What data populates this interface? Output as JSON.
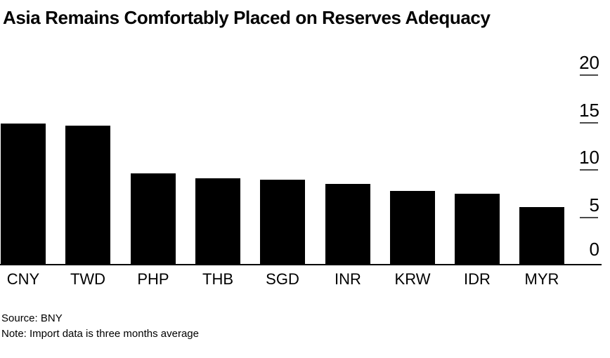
{
  "title": "Asia Remains Comfortably Placed on Reserves Adequacy",
  "footer": {
    "source": "Source: BNY",
    "note": "Note: Import data is three months average"
  },
  "colors": {
    "background": "#ffffff",
    "bar": "#000000",
    "baseline": "#000000",
    "tick": "#4a4a4a",
    "text": "#000000"
  },
  "chart_data": {
    "type": "bar",
    "title": "Asia Remains Comfortably Placed on Reserves Adequacy",
    "categories": [
      "CNY",
      "TWD",
      "PHP",
      "THB",
      "SGD",
      "INR",
      "KRW",
      "IDR",
      "MYR"
    ],
    "values": [
      14.9,
      14.7,
      9.6,
      9.1,
      9.0,
      8.5,
      7.8,
      7.5,
      6.1
    ],
    "xlabel": "",
    "ylabel": "",
    "ylim": [
      0,
      20
    ],
    "yticks": [
      0,
      5,
      10,
      15,
      20
    ],
    "axis_side": "right",
    "grid": false,
    "legend": false,
    "bar_color": "#000000",
    "source": "Source: BNY",
    "note": "Note: Import data is three months average"
  }
}
